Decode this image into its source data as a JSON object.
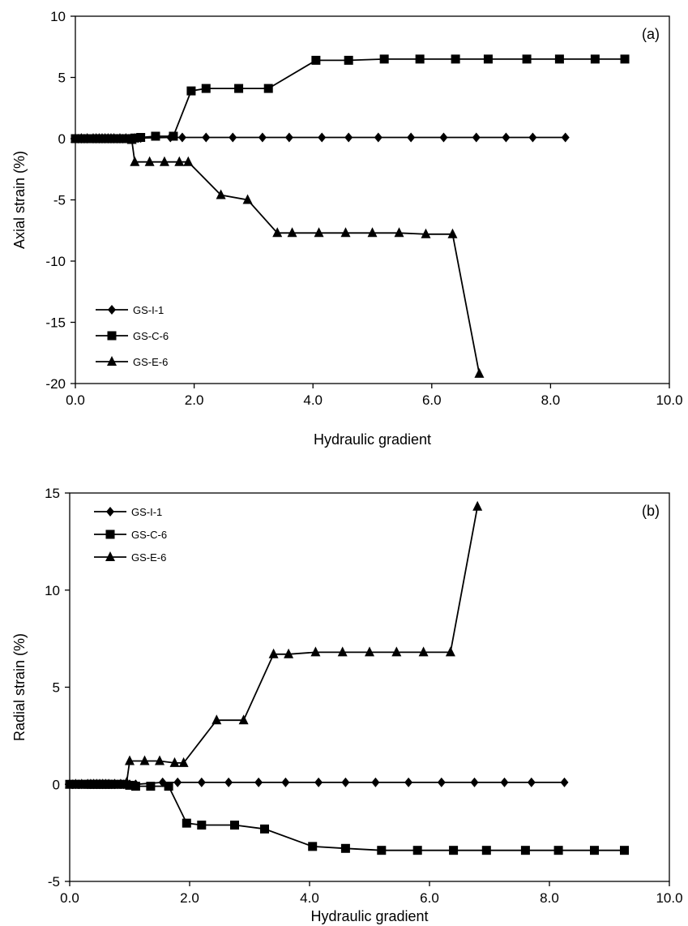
{
  "chart_data": [
    {
      "type": "line",
      "panel_label": "(a)",
      "xlabel": "Hydraulic gradient",
      "ylabel": "Axial strain (%)",
      "xlim": [
        0,
        10
      ],
      "ylim": [
        -20,
        10
      ],
      "xticks": [
        0,
        2,
        4,
        6,
        8,
        10
      ],
      "xtick_labels": [
        "0.0",
        "2.0",
        "4.0",
        "6.0",
        "8.0",
        "10.0"
      ],
      "yticks": [
        -20,
        -15,
        -10,
        -5,
        0,
        5,
        10
      ],
      "ytick_labels": [
        "-20",
        "-15",
        "-10",
        "-5",
        "0",
        "5",
        "10"
      ],
      "grid": false,
      "legend_position": "bottom-left",
      "series": [
        {
          "name": "GS-I-1",
          "marker": "diamond",
          "points": [
            [
              0,
              0
            ],
            [
              0.05,
              0
            ],
            [
              0.1,
              0
            ],
            [
              0.15,
              0
            ],
            [
              0.2,
              0
            ],
            [
              0.3,
              0
            ],
            [
              0.35,
              0
            ],
            [
              0.4,
              0
            ],
            [
              0.45,
              0
            ],
            [
              0.5,
              0
            ],
            [
              0.55,
              0
            ],
            [
              0.6,
              0
            ],
            [
              0.65,
              0
            ],
            [
              0.7,
              0
            ],
            [
              0.75,
              0
            ],
            [
              0.8,
              0
            ],
            [
              0.9,
              0
            ],
            [
              1.0,
              0.05
            ],
            [
              1.1,
              0.05
            ],
            [
              1.6,
              0.1
            ],
            [
              1.8,
              0.1
            ],
            [
              2.2,
              0.1
            ],
            [
              2.65,
              0.1
            ],
            [
              3.15,
              0.1
            ],
            [
              3.6,
              0.1
            ],
            [
              4.15,
              0.1
            ],
            [
              4.6,
              0.1
            ],
            [
              5.1,
              0.1
            ],
            [
              5.65,
              0.1
            ],
            [
              6.2,
              0.1
            ],
            [
              6.75,
              0.1
            ],
            [
              7.25,
              0.1
            ],
            [
              7.7,
              0.1
            ],
            [
              8.25,
              0.1
            ]
          ]
        },
        {
          "name": "GS-C-6",
          "marker": "square",
          "points": [
            [
              0,
              0
            ],
            [
              0.1,
              0
            ],
            [
              0.2,
              0
            ],
            [
              0.3,
              0
            ],
            [
              0.35,
              0
            ],
            [
              0.4,
              0
            ],
            [
              0.45,
              0
            ],
            [
              0.5,
              0
            ],
            [
              0.55,
              0
            ],
            [
              0.6,
              0
            ],
            [
              0.65,
              0
            ],
            [
              0.7,
              0
            ],
            [
              0.8,
              0
            ],
            [
              0.9,
              0
            ],
            [
              1.0,
              0.05
            ],
            [
              1.1,
              0.1
            ],
            [
              1.35,
              0.2
            ],
            [
              1.65,
              0.2
            ],
            [
              1.95,
              3.9
            ],
            [
              2.2,
              4.1
            ],
            [
              2.75,
              4.1
            ],
            [
              3.25,
              4.1
            ],
            [
              4.05,
              6.4
            ],
            [
              4.6,
              6.4
            ],
            [
              5.2,
              6.5
            ],
            [
              5.8,
              6.5
            ],
            [
              6.4,
              6.5
            ],
            [
              6.95,
              6.5
            ],
            [
              7.6,
              6.5
            ],
            [
              8.15,
              6.5
            ],
            [
              8.75,
              6.5
            ],
            [
              9.25,
              6.5
            ]
          ]
        },
        {
          "name": "GS-E-6",
          "marker": "triangle",
          "points": [
            [
              0,
              0
            ],
            [
              0.1,
              0
            ],
            [
              0.2,
              0
            ],
            [
              0.3,
              0
            ],
            [
              0.35,
              0
            ],
            [
              0.4,
              0
            ],
            [
              0.45,
              0
            ],
            [
              0.5,
              0
            ],
            [
              0.55,
              0
            ],
            [
              0.6,
              0
            ],
            [
              0.65,
              0
            ],
            [
              0.75,
              0
            ],
            [
              0.85,
              0
            ],
            [
              0.95,
              -0.1
            ],
            [
              1.0,
              -1.9
            ],
            [
              1.25,
              -1.9
            ],
            [
              1.5,
              -1.9
            ],
            [
              1.75,
              -1.9
            ],
            [
              1.9,
              -1.9
            ],
            [
              2.45,
              -4.6
            ],
            [
              2.9,
              -5.0
            ],
            [
              3.4,
              -7.7
            ],
            [
              3.65,
              -7.7
            ],
            [
              4.1,
              -7.7
            ],
            [
              4.55,
              -7.7
            ],
            [
              5.0,
              -7.7
            ],
            [
              5.45,
              -7.7
            ],
            [
              5.9,
              -7.8
            ],
            [
              6.35,
              -7.8
            ],
            [
              6.8,
              -19.2
            ]
          ]
        }
      ]
    },
    {
      "type": "line",
      "panel_label": "(b)",
      "xlabel": "Hydraulic gradient",
      "ylabel": "Radial strain (%)",
      "xlim": [
        0,
        10
      ],
      "ylim": [
        -5,
        15
      ],
      "xticks": [
        0,
        2,
        4,
        6,
        8,
        10
      ],
      "xtick_labels": [
        "0.0",
        "2.0",
        "4.0",
        "6.0",
        "8.0",
        "10.0"
      ],
      "yticks": [
        -5,
        0,
        5,
        10,
        15
      ],
      "ytick_labels": [
        "-5",
        "0",
        "5",
        "10",
        "15"
      ],
      "grid": false,
      "legend_position": "top-left",
      "series": [
        {
          "name": "GS-I-1",
          "marker": "diamond",
          "points": [
            [
              0,
              0
            ],
            [
              0.05,
              0
            ],
            [
              0.1,
              0
            ],
            [
              0.15,
              0
            ],
            [
              0.2,
              0
            ],
            [
              0.3,
              0
            ],
            [
              0.35,
              0
            ],
            [
              0.4,
              0
            ],
            [
              0.45,
              0
            ],
            [
              0.5,
              0
            ],
            [
              0.55,
              0
            ],
            [
              0.6,
              0
            ],
            [
              0.65,
              0
            ],
            [
              0.7,
              0
            ],
            [
              0.75,
              0
            ],
            [
              0.8,
              0
            ],
            [
              0.9,
              0
            ],
            [
              1.0,
              0
            ],
            [
              1.1,
              0
            ],
            [
              1.55,
              0.1
            ],
            [
              1.8,
              0.1
            ],
            [
              2.2,
              0.1
            ],
            [
              2.65,
              0.1
            ],
            [
              3.15,
              0.1
            ],
            [
              3.6,
              0.1
            ],
            [
              4.15,
              0.1
            ],
            [
              4.6,
              0.1
            ],
            [
              5.1,
              0.1
            ],
            [
              5.65,
              0.1
            ],
            [
              6.2,
              0.1
            ],
            [
              6.75,
              0.1
            ],
            [
              7.25,
              0.1
            ],
            [
              7.7,
              0.1
            ],
            [
              8.25,
              0.1
            ]
          ]
        },
        {
          "name": "GS-C-6",
          "marker": "square",
          "points": [
            [
              0,
              0
            ],
            [
              0.1,
              0
            ],
            [
              0.2,
              0
            ],
            [
              0.3,
              0
            ],
            [
              0.35,
              0
            ],
            [
              0.4,
              0
            ],
            [
              0.45,
              0
            ],
            [
              0.5,
              0
            ],
            [
              0.55,
              0
            ],
            [
              0.6,
              0
            ],
            [
              0.65,
              0
            ],
            [
              0.7,
              0
            ],
            [
              0.8,
              0
            ],
            [
              0.9,
              0
            ],
            [
              1.0,
              -0.05
            ],
            [
              1.1,
              -0.1
            ],
            [
              1.35,
              -0.1
            ],
            [
              1.65,
              -0.1
            ],
            [
              1.95,
              -2.0
            ],
            [
              2.2,
              -2.1
            ],
            [
              2.75,
              -2.1
            ],
            [
              3.25,
              -2.3
            ],
            [
              4.05,
              -3.2
            ],
            [
              4.6,
              -3.3
            ],
            [
              5.2,
              -3.4
            ],
            [
              5.8,
              -3.4
            ],
            [
              6.4,
              -3.4
            ],
            [
              6.95,
              -3.4
            ],
            [
              7.6,
              -3.4
            ],
            [
              8.15,
              -3.4
            ],
            [
              8.75,
              -3.4
            ],
            [
              9.25,
              -3.4
            ]
          ]
        },
        {
          "name": "GS-E-6",
          "marker": "triangle",
          "points": [
            [
              0,
              0
            ],
            [
              0.1,
              0
            ],
            [
              0.2,
              0
            ],
            [
              0.3,
              0
            ],
            [
              0.35,
              0
            ],
            [
              0.4,
              0
            ],
            [
              0.45,
              0
            ],
            [
              0.5,
              0
            ],
            [
              0.55,
              0
            ],
            [
              0.6,
              0
            ],
            [
              0.65,
              0
            ],
            [
              0.75,
              0
            ],
            [
              0.85,
              0
            ],
            [
              0.95,
              0.1
            ],
            [
              1.0,
              1.2
            ],
            [
              1.25,
              1.2
            ],
            [
              1.5,
              1.2
            ],
            [
              1.75,
              1.1
            ],
            [
              1.9,
              1.1
            ],
            [
              2.45,
              3.3
            ],
            [
              2.9,
              3.3
            ],
            [
              3.4,
              6.7
            ],
            [
              3.65,
              6.7
            ],
            [
              4.1,
              6.8
            ],
            [
              4.55,
              6.8
            ],
            [
              5.0,
              6.8
            ],
            [
              5.45,
              6.8
            ],
            [
              5.9,
              6.8
            ],
            [
              6.35,
              6.8
            ],
            [
              6.8,
              14.3
            ]
          ]
        }
      ]
    }
  ]
}
